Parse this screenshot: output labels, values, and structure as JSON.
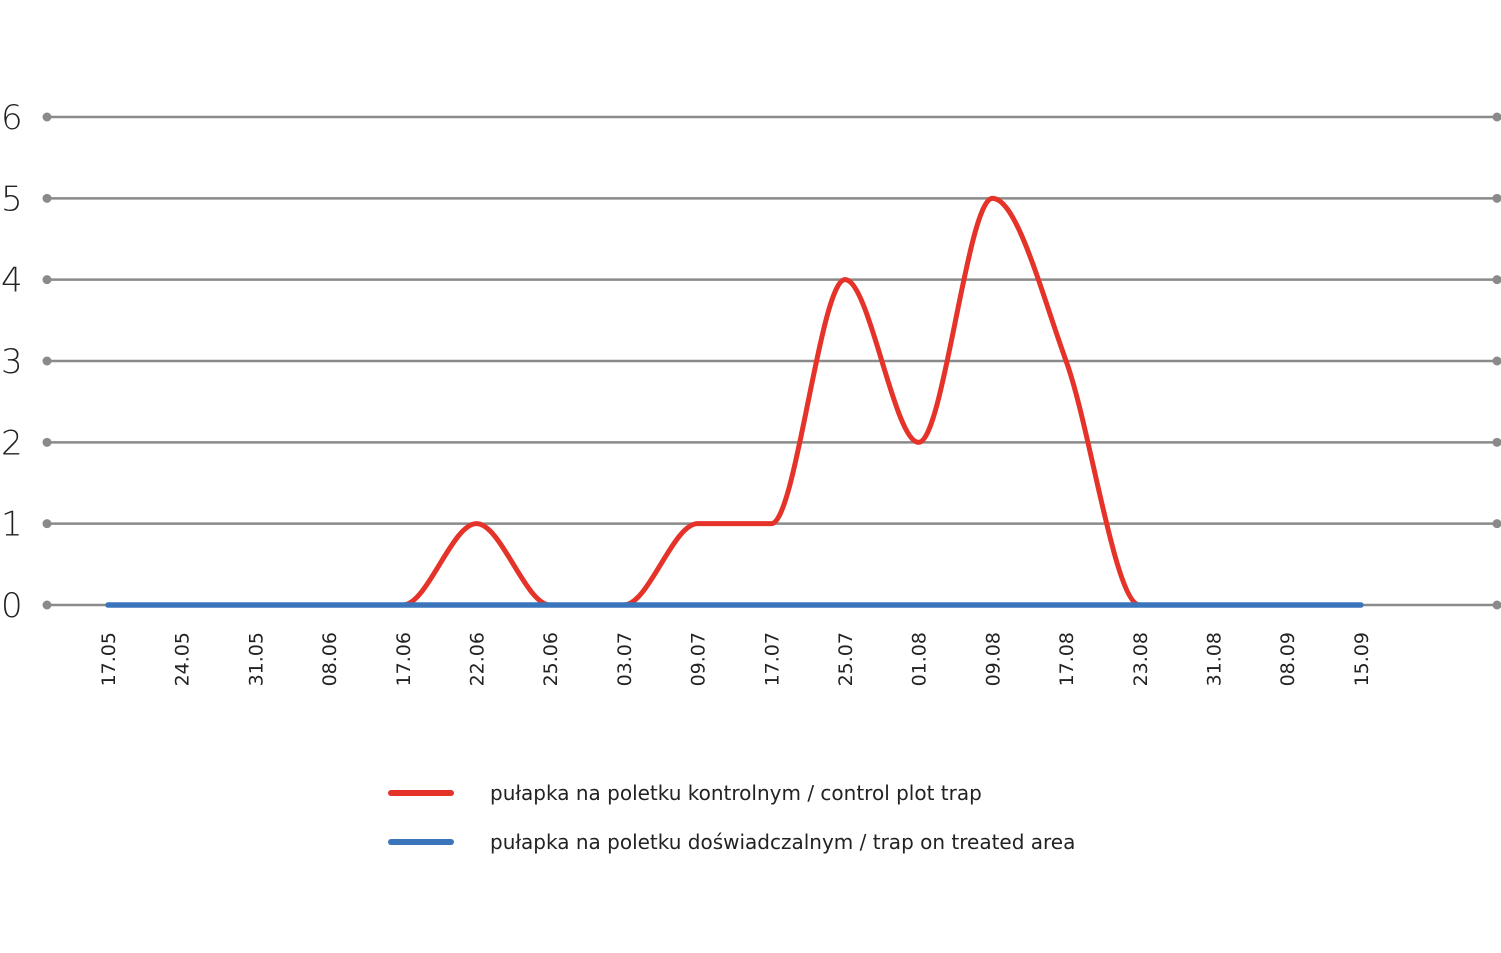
{
  "chart_data": {
    "type": "line",
    "categories": [
      "17.05",
      "24.05",
      "31.05",
      "08.06",
      "17.06",
      "22.06",
      "25.06",
      "03.07",
      "09.07",
      "17.07",
      "25.07",
      "01.08",
      "09.08",
      "17.08",
      "23.08",
      "31.08",
      "08.09",
      "15.09"
    ],
    "series": [
      {
        "name": "pułapka na poletku kontrolnym / control plot trap",
        "color": "#e5332a",
        "values": [
          0,
          0,
          0,
          0,
          0,
          1,
          0,
          0,
          1,
          1,
          4,
          2,
          5,
          3,
          0,
          0,
          0,
          0
        ]
      },
      {
        "name": "pułapka na poletku doświadczalnym / trap on treated area",
        "color": "#3a75bb",
        "values": [
          0,
          0,
          0,
          0,
          0,
          0,
          0,
          0,
          0,
          0,
          0,
          0,
          0,
          0,
          0,
          0,
          0,
          0
        ]
      }
    ],
    "yticks": [
      "0",
      "1",
      "2",
      "3",
      "4",
      "5",
      "6"
    ],
    "ylim": [
      0,
      6
    ],
    "grid": true,
    "grid_color": "#8a8a8a",
    "legend_position": "bottom-center"
  }
}
